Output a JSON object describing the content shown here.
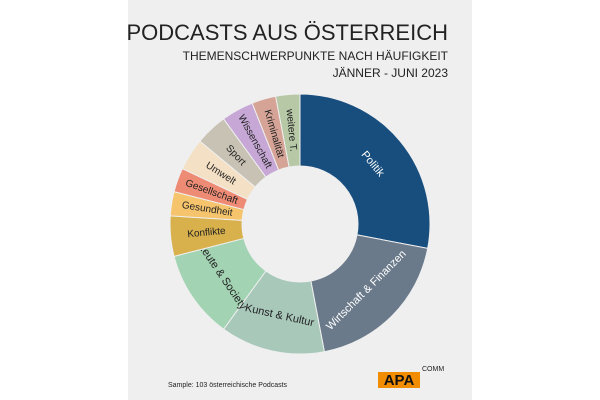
{
  "chart_data": {
    "type": "donut",
    "title": "PODCASTS AUS ÖSTERREICH",
    "subtitle": "THEMENSCHWERPUNKTE NACH HÄUFIGKEIT",
    "period": "JÄNNER - JUNI 2023",
    "note": "Sample: 103 österreichische Podcasts",
    "brand": "APA",
    "brand_sub": "COMM",
    "categories": [
      "Politik",
      "Wirtschaft & Finanzen",
      "Kunst & Kultur",
      "Leute & Society",
      "Konflikte",
      "Gesundheit",
      "Gesellschaft",
      "Umwelt",
      "Sport",
      "Wissenschaft",
      "Kriminalität",
      "weitere T."
    ],
    "values": [
      28,
      19,
      13,
      11,
      5,
      3,
      3,
      4,
      4,
      4,
      3,
      3
    ],
    "colors": [
      "#184e7e",
      "#6b7a8b",
      "#a8c8ba",
      "#a2d3b3",
      "#d8b04c",
      "#f6c46c",
      "#ee8b74",
      "#f4e0c4",
      "#c8c2b4",
      "#c6a7d5",
      "#d6a497",
      "#b6c8a5"
    ]
  }
}
